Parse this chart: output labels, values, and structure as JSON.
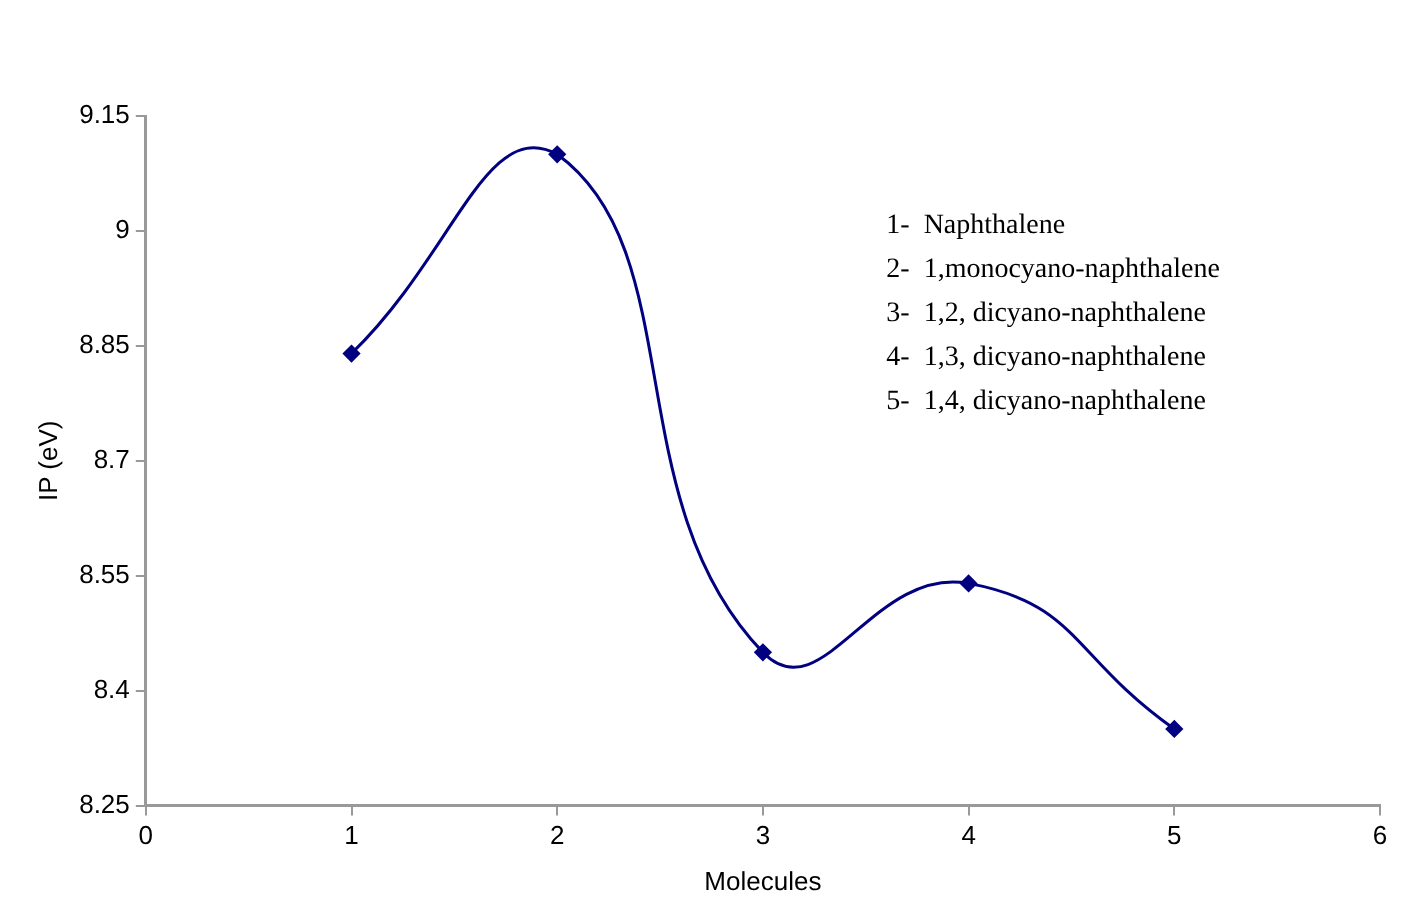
{
  "chart_data": {
    "type": "line",
    "xlabel": "Molecules",
    "ylabel": "IP (eV)",
    "x": [
      1,
      2,
      3,
      4,
      5
    ],
    "series": [
      {
        "color": "#000080",
        "values": [
          8.84,
          9.1,
          8.45,
          8.54,
          8.35
        ]
      }
    ],
    "xlim": [
      0,
      6
    ],
    "xticks": [
      0,
      1,
      2,
      3,
      4,
      5,
      6
    ],
    "ylim": [
      8.25,
      9.15
    ],
    "yticks": [
      8.25,
      8.4,
      8.55,
      8.7,
      8.85,
      9,
      9.15
    ],
    "grid": false,
    "legend": false,
    "marker": "diamond",
    "line_style": "solid",
    "annotations": [
      "1-  Naphthalene",
      "2-  1,monocyano-naphthalene",
      "3-  1,2, dicyano-naphthalene",
      "4-  1,3, dicyano-naphthalene",
      "5-  1,4, dicyano-naphthalene"
    ]
  }
}
